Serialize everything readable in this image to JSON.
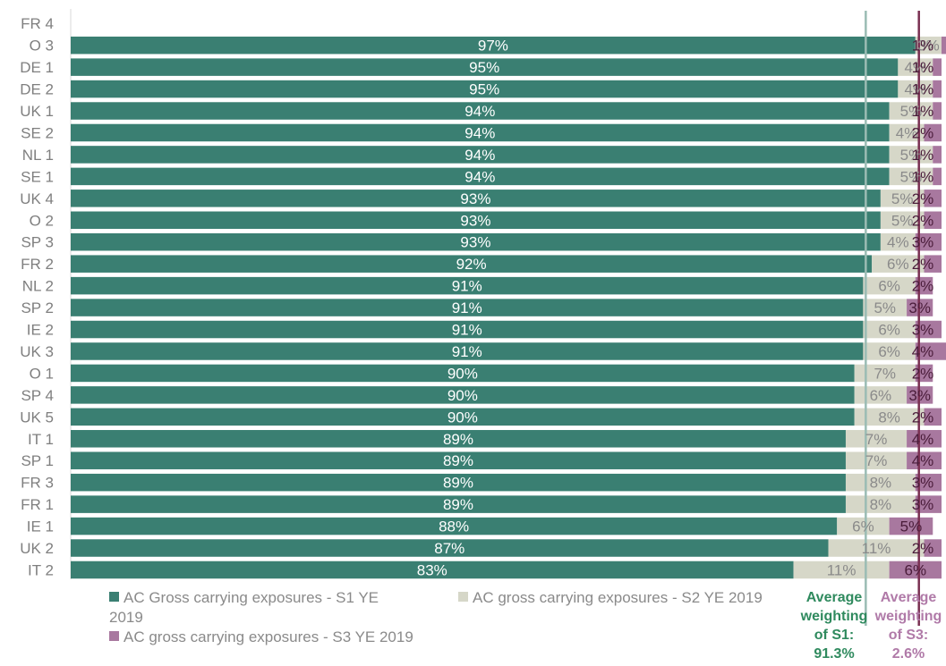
{
  "colors": {
    "s1": "#3a7f72",
    "s2": "#d6d7c8",
    "s3": "#a8789f",
    "avg_s1": "#9bbcb4",
    "avg_s3": "#7a3052",
    "avg_s1_text": "#2f8a5e",
    "avg_s3_text": "#b07aa8"
  },
  "legend": {
    "s1": "AC Gross carrying exposures - S1 YE 2019",
    "s2": "AC gross carrying exposures - S2 YE 2019",
    "s3": "AC gross carrying exposures - S3 YE 2019"
  },
  "averages": {
    "s1_label": "Average weighting of S1: 91.3%",
    "s3_label": "Average weighting of S3: 2.6%"
  },
  "chart_data": {
    "type": "bar",
    "orientation": "horizontal",
    "stacked": true,
    "categories": [
      "FR 4",
      "O 3",
      "DE 1",
      "DE 2",
      "UK 1",
      "SE 2",
      "NL 1",
      "SE 1",
      "UK 4",
      "O 2",
      "SP 3",
      "FR 2",
      "NL 2",
      "SP 2",
      "IE 2",
      "UK 3",
      "O 1",
      "SP 4",
      "UK 5",
      "IT 1",
      "SP 1",
      "FR 3",
      "FR 1",
      "IE 1",
      "UK 2",
      "IT 2"
    ],
    "series": [
      {
        "name": "AC Gross carrying exposures - S1 YE 2019",
        "values": [
          null,
          97,
          95,
          95,
          94,
          94,
          94,
          94,
          93,
          93,
          93,
          92,
          91,
          91,
          91,
          91,
          90,
          90,
          90,
          89,
          89,
          89,
          89,
          88,
          87,
          83
        ]
      },
      {
        "name": "AC gross carrying exposures - S2 YE 2019",
        "values": [
          null,
          3,
          4,
          4,
          5,
          4,
          5,
          5,
          5,
          5,
          4,
          6,
          6,
          5,
          6,
          6,
          7,
          6,
          8,
          7,
          7,
          8,
          8,
          6,
          11,
          11
        ]
      },
      {
        "name": "AC gross carrying exposures - S3 YE 2019",
        "values": [
          null,
          1,
          1,
          1,
          1,
          2,
          1,
          1,
          2,
          2,
          3,
          2,
          2,
          3,
          3,
          4,
          2,
          3,
          2,
          4,
          4,
          3,
          3,
          5,
          2,
          6
        ]
      }
    ],
    "reference_lines": [
      {
        "series": "S1",
        "value": 91.3,
        "label": "Average weighting of S1: 91.3%"
      },
      {
        "series": "S3",
        "value": 2.6,
        "label": "Average weighting of S3: 2.6%"
      }
    ],
    "value_labels_format": "{v}%",
    "legend_position": "bottom",
    "grid": false
  }
}
